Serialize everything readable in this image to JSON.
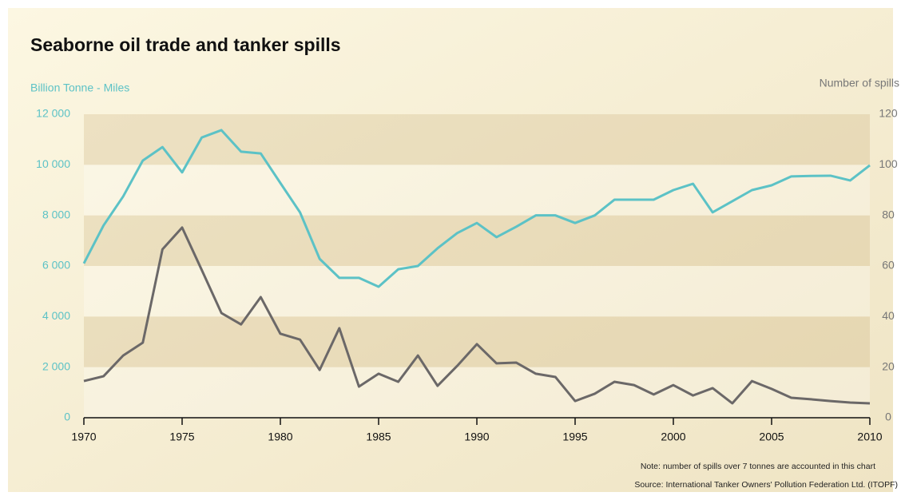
{
  "chart_data": {
    "type": "line",
    "title": "Seaborne oil trade and tanker spills",
    "y_label": "Billion Tonne - Miles",
    "y2_label": "Number of spills",
    "note": "Note: number of spills over 7 tonnes are accounted in this chart",
    "source": "Source: International Tanker Owners' Pollution Federation Ltd. (ITOPF)",
    "x": [
      1970,
      1971,
      1972,
      1973,
      1974,
      1975,
      1976,
      1977,
      1978,
      1979,
      1980,
      1981,
      1982,
      1983,
      1984,
      1985,
      1986,
      1987,
      1988,
      1989,
      1990,
      1991,
      1992,
      1993,
      1994,
      1995,
      1996,
      1997,
      1998,
      1999,
      2000,
      2001,
      2002,
      2003,
      2004,
      2005,
      2006,
      2007,
      2008,
      2009,
      2010
    ],
    "series": [
      {
        "name": "Seaborne oil trade",
        "color": "#5cc2c6",
        "values": [
          6100,
          7600,
          8750,
          10170,
          10700,
          9700,
          11080,
          11370,
          10520,
          10450,
          9280,
          8120,
          6280,
          5530,
          5530,
          5180,
          5870,
          6000,
          6700,
          7300,
          7700,
          7140,
          7550,
          8000,
          8000,
          7700,
          8000,
          8620,
          8620,
          8620,
          9000,
          9250,
          8120,
          8560,
          9000,
          9190,
          9540,
          9560,
          9570,
          9380,
          9980
        ]
      },
      {
        "name": "Tanker spills",
        "color": "#6b6868",
        "axis": "y2",
        "values": [
          14.5,
          16.4,
          24.6,
          29.7,
          66.6,
          75.2,
          58.4,
          41.4,
          36.9,
          47.7,
          33.2,
          30.9,
          18.9,
          35.4,
          12.3,
          17.4,
          14.2,
          24.6,
          12.6,
          20.5,
          29.1,
          21.5,
          21.8,
          17.4,
          16.1,
          6.6,
          9.5,
          14.2,
          12.9,
          9.2,
          12.9,
          8.8,
          11.7,
          5.7,
          14.5,
          11.4,
          7.9,
          7.3,
          6.6,
          6.0,
          5.7
        ]
      }
    ],
    "xlim": [
      1970,
      2010
    ],
    "xticks": [
      1970,
      1975,
      1980,
      1985,
      1990,
      1995,
      2000,
      2005,
      2010
    ],
    "ylim": [
      0,
      12000
    ],
    "yticks": [
      0,
      {
        "value": 2000,
        "label": "2 000"
      },
      {
        "value": 4000,
        "label": "4 000"
      },
      {
        "value": 6000,
        "label": "6 000"
      },
      {
        "value": 8000,
        "label": "8 000"
      },
      {
        "value": 10000,
        "label": "10 000"
      },
      {
        "value": 12000,
        "label": "12 000"
      }
    ],
    "y2lim": [
      0,
      120
    ],
    "y2ticks": [
      0,
      20,
      40,
      60,
      80,
      100,
      120
    ],
    "y_tick_color": "#5cc2c6",
    "y2_tick_color": "#777777"
  }
}
